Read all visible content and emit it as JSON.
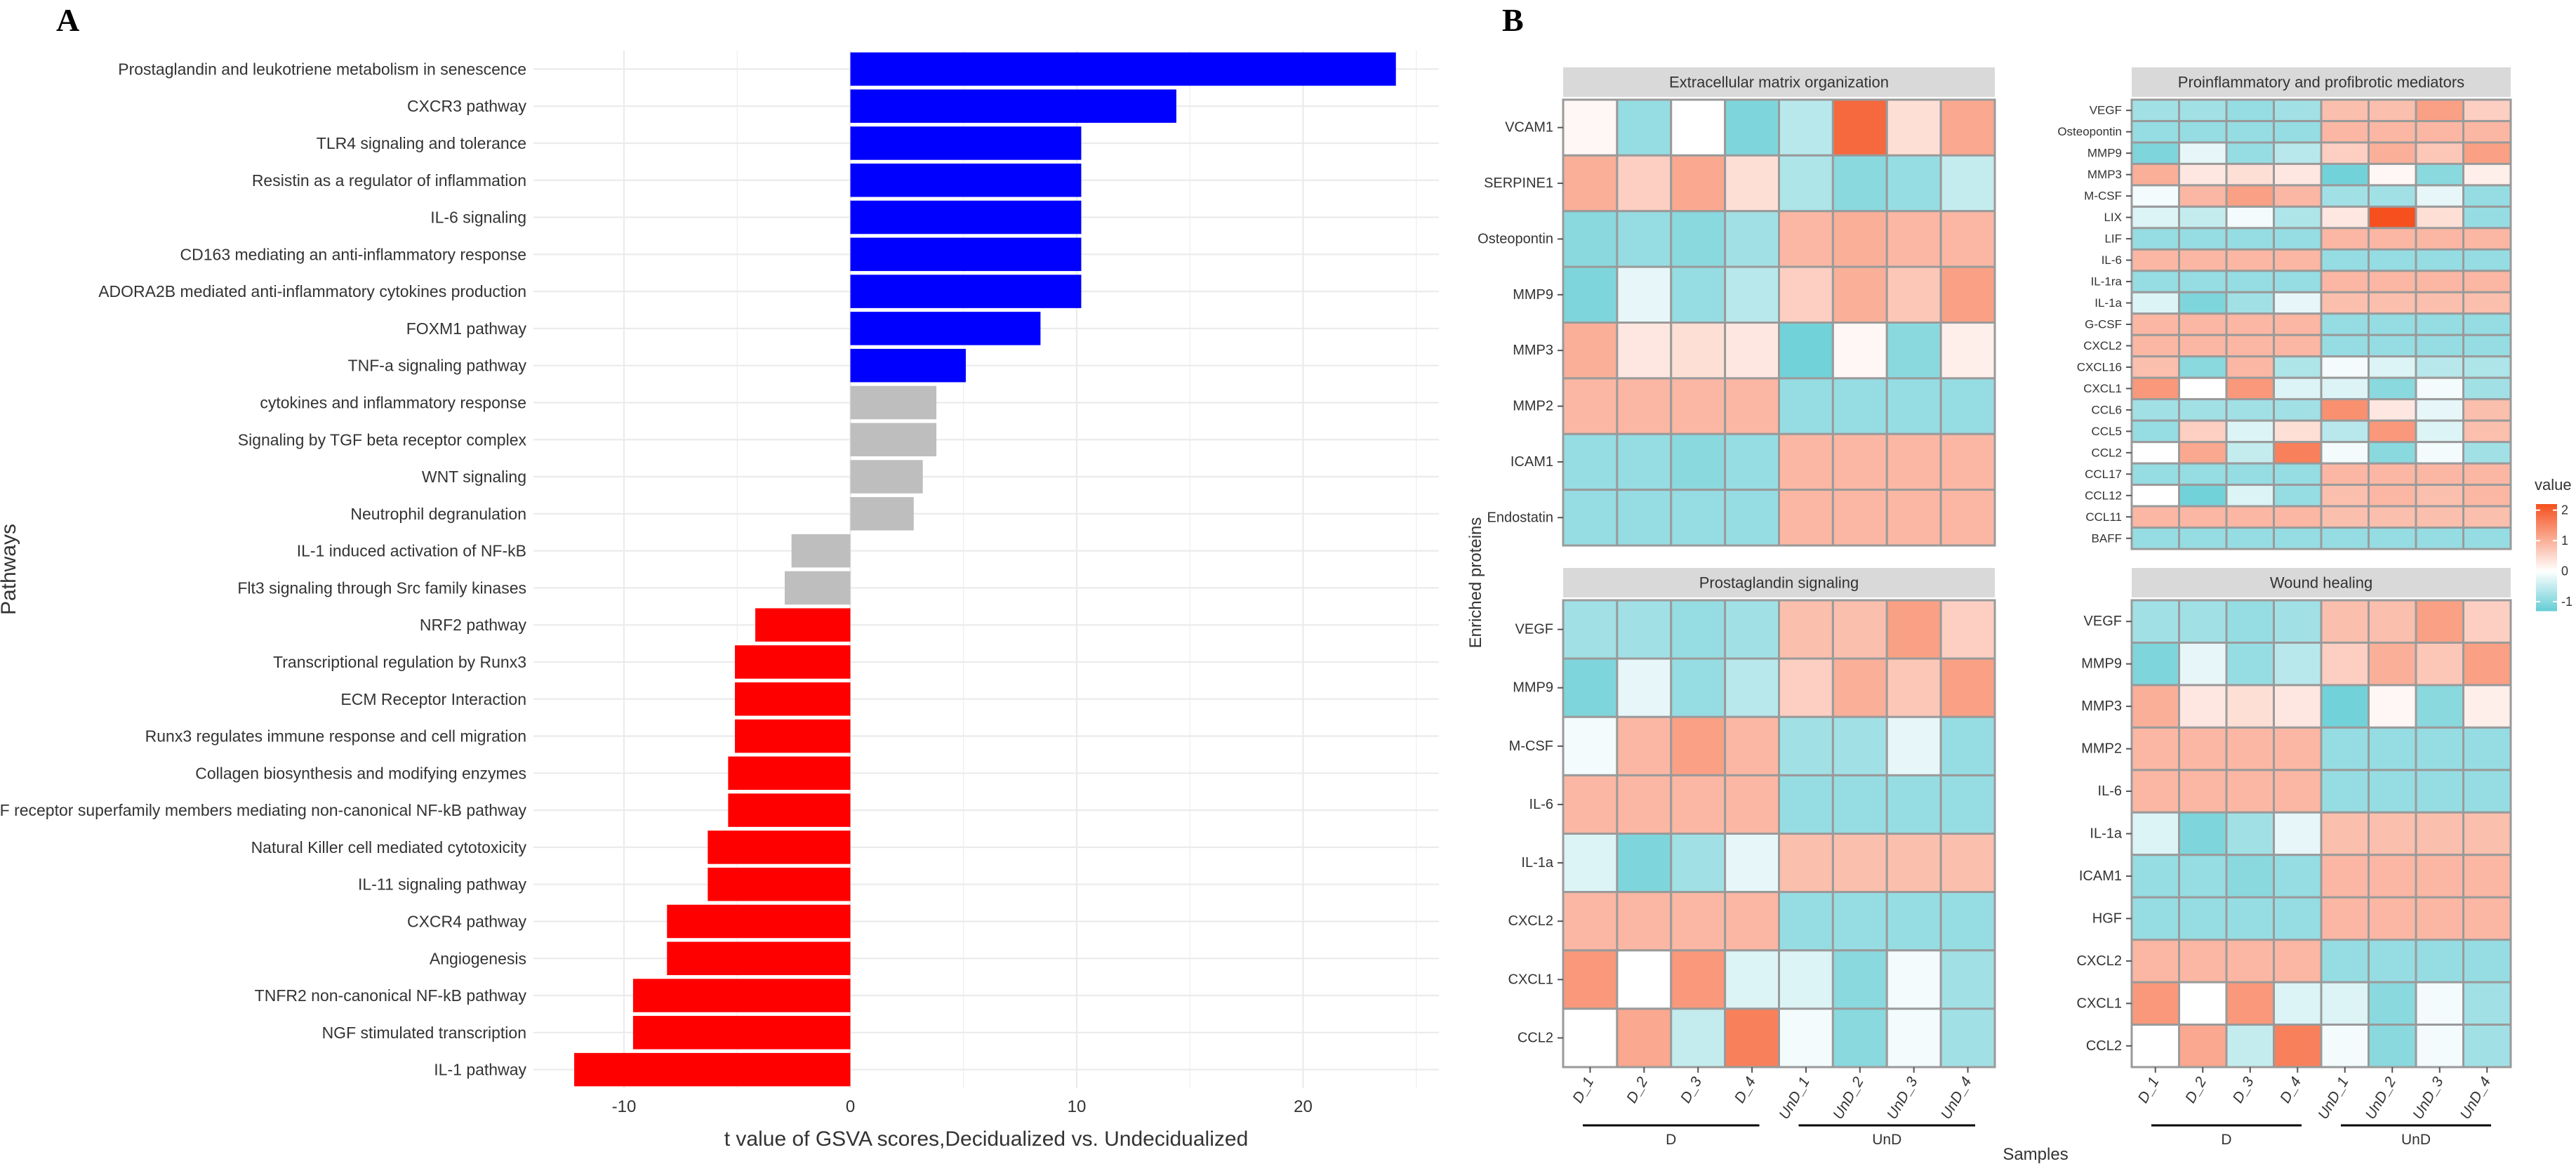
{
  "panel_a_letter": "A",
  "panel_b_letter": "B",
  "chart_data": [
    {
      "type": "bar",
      "orientation": "horizontal",
      "xlabel": "t value of GSVA scores,Decidualized vs. Undecidualized",
      "ylabel": "Pathways",
      "xlim": [
        -14,
        26
      ],
      "xticks": [
        -10,
        0,
        10,
        20
      ],
      "grid": true,
      "colors": {
        "up": "#0000FF",
        "ns": "#BEBEBE",
        "down": "#FF0000"
      },
      "categories": [
        "Prostaglandin and leukotriene metabolism in senescence",
        "CXCR3 pathway",
        "TLR4 signaling and tolerance",
        "Resistin as a regulator of inflammation",
        "IL-6 signaling",
        "CD163 mediating an anti-inflammatory response",
        "ADORA2B mediated anti-inflammatory cytokines production",
        "FOXM1 pathway",
        "TNF-a signaling pathway",
        "cytokines and inflammatory response",
        "Signaling by TGF beta receptor complex",
        "WNT signaling",
        "Neutrophil degranulation",
        "IL-1 induced activation of NF-kB",
        "Flt3 signaling through Src family kinases",
        "NRF2 pathway",
        "Transcriptional regulation by Runx3",
        "ECM Receptor Interaction",
        "Runx3 regulates immune response and cell migration",
        "Collagen biosynthesis and modifying enzymes",
        "TNF receptor superfamily members mediating non-canonical NF-kB pathway",
        "Natural Killer cell mediated cytotoxicity",
        "IL-11 signaling pathway",
        "CXCR4 pathway",
        "Angiogenesis",
        "TNFR2 non-canonical NF-kB pathway",
        "NGF stimulated transcription",
        "IL-1 pathway"
      ],
      "values": [
        24.1,
        14.4,
        10.2,
        10.2,
        10.2,
        10.2,
        10.2,
        8.4,
        5.1,
        3.8,
        3.8,
        3.2,
        2.8,
        -2.6,
        -2.9,
        -4.2,
        -5.1,
        -5.1,
        -5.1,
        -5.4,
        -5.4,
        -6.3,
        -6.3,
        -8.1,
        -8.1,
        -9.6,
        -9.6,
        -12.2
      ],
      "groups": [
        "up",
        "up",
        "up",
        "up",
        "up",
        "up",
        "up",
        "up",
        "up",
        "ns",
        "ns",
        "ns",
        "ns",
        "ns",
        "ns",
        "down",
        "down",
        "down",
        "down",
        "down",
        "down",
        "down",
        "down",
        "down",
        "down",
        "down",
        "down",
        "down"
      ]
    },
    {
      "type": "heatmap",
      "xlabel": "Samples",
      "ylabel": "Enriched proteins",
      "samples": [
        "D_1",
        "D_2",
        "D_3",
        "D_4",
        "UnD_1",
        "UnD_2",
        "UnD_3",
        "UnD_4"
      ],
      "sample_groups": [
        {
          "name": "D",
          "n": 4
        },
        {
          "name": "UnD",
          "n": 4
        }
      ],
      "legend": {
        "title": "value",
        "ticks": [
          2,
          1,
          0,
          -1
        ],
        "range": [
          -1.3,
          2.2
        ]
      },
      "facets": [
        {
          "title": "Extracellular matrix organization",
          "rows": [
            "VCAM1",
            "SERPINE1",
            "Osteopontin",
            "MMP9",
            "MMP3",
            "MMP2",
            "ICAM1",
            "Endostatin"
          ],
          "values": [
            [
              0.1,
              -0.9,
              0,
              -1.1,
              -0.6,
              1.9,
              0.4,
              1.1
            ],
            [
              1.0,
              0.6,
              1.1,
              0.4,
              -0.7,
              -1.0,
              -0.9,
              -0.5
            ],
            [
              -1.0,
              -0.9,
              -1.0,
              -0.8,
              0.9,
              1.0,
              0.9,
              0.9
            ],
            [
              -1.1,
              -0.2,
              -0.9,
              -0.6,
              0.6,
              1.0,
              0.7,
              1.2
            ],
            [
              1.0,
              0.3,
              0.4,
              0.3,
              -1.2,
              0.1,
              -1.0,
              0.2
            ],
            [
              0.9,
              0.9,
              0.9,
              0.9,
              -0.9,
              -0.9,
              -0.9,
              -0.9
            ],
            [
              -0.9,
              -0.9,
              -1.0,
              -0.9,
              0.9,
              0.9,
              0.9,
              0.9
            ],
            [
              -0.9,
              -0.9,
              -0.9,
              -0.9,
              0.9,
              0.9,
              0.9,
              0.9
            ]
          ]
        },
        {
          "title": "Proinflammatory and profibrotic mediators",
          "rows": [
            "VEGF",
            "Osteopontin",
            "MMP9",
            "MMP3",
            "M-CSF",
            "LIX",
            "LIF",
            "IL-6",
            "IL-1ra",
            "IL-1a",
            "G-CSF",
            "CXCL2",
            "CXCL16",
            "CXCL1",
            "CCL6",
            "CCL5",
            "CCL2",
            "CCL17",
            "CCL12",
            "CCL11",
            "BAFF"
          ],
          "values": [
            [
              -0.8,
              -0.8,
              -0.9,
              -0.8,
              0.8,
              0.8,
              1.2,
              0.6
            ],
            [
              -0.9,
              -0.9,
              -0.9,
              -0.9,
              0.9,
              0.9,
              0.9,
              0.9
            ],
            [
              -1.1,
              -0.2,
              -0.9,
              -0.6,
              0.6,
              1.0,
              0.7,
              1.2
            ],
            [
              1.0,
              0.3,
              0.4,
              0.3,
              -1.2,
              0.1,
              -1.0,
              0.2
            ],
            [
              -0.1,
              0.9,
              1.2,
              0.9,
              -0.8,
              -0.8,
              -0.2,
              -0.9
            ],
            [
              -0.3,
              -0.5,
              -0.1,
              -0.7,
              0.3,
              2.2,
              0.4,
              -0.9
            ],
            [
              -0.9,
              -0.9,
              -0.9,
              -0.9,
              0.9,
              0.9,
              0.9,
              0.9
            ],
            [
              0.9,
              0.9,
              0.9,
              0.9,
              -0.9,
              -0.9,
              -0.9,
              -0.9
            ],
            [
              -0.9,
              -0.9,
              -0.9,
              -0.9,
              0.9,
              0.9,
              0.9,
              0.9
            ],
            [
              -0.3,
              -1.1,
              -0.8,
              -0.2,
              0.8,
              0.8,
              0.8,
              0.8
            ],
            [
              0.9,
              0.9,
              0.9,
              0.9,
              -0.9,
              -0.9,
              -0.9,
              -0.9
            ],
            [
              0.9,
              0.9,
              0.9,
              0.9,
              -0.9,
              -0.9,
              -0.9,
              -0.9
            ],
            [
              0.8,
              -1.0,
              0.9,
              -0.7,
              -0.1,
              -0.3,
              -0.6,
              -0.7
            ],
            [
              1.3,
              0.0,
              1.3,
              -0.3,
              -0.3,
              -1.0,
              -0.1,
              -0.8
            ],
            [
              -0.8,
              -0.8,
              -0.8,
              -0.8,
              1.4,
              0.3,
              -0.2,
              0.8
            ],
            [
              -0.9,
              0.6,
              -0.3,
              0.4,
              -0.6,
              1.3,
              -0.3,
              0.8
            ],
            [
              0.0,
              1.1,
              -0.5,
              1.6,
              -0.1,
              -1.0,
              -0.1,
              -0.8
            ],
            [
              -0.9,
              -0.9,
              -0.9,
              -0.9,
              0.9,
              0.9,
              0.9,
              0.9
            ],
            [
              0.0,
              -1.2,
              -0.3,
              -0.9,
              0.8,
              0.9,
              0.8,
              0.9
            ],
            [
              0.9,
              0.9,
              0.9,
              0.9,
              0.8,
              0.8,
              0.8,
              0.8
            ],
            [
              -0.9,
              -0.9,
              -0.9,
              -0.9,
              -0.9,
              -0.9,
              -0.9,
              -0.9
            ]
          ]
        },
        {
          "title": "Prostaglandin signaling",
          "rows": [
            "VEGF",
            "MMP9",
            "M-CSF",
            "IL-6",
            "IL-1a",
            "CXCL2",
            "CXCL1",
            "CCL2"
          ],
          "values": [
            [
              -0.8,
              -0.8,
              -0.9,
              -0.8,
              0.8,
              0.8,
              1.2,
              0.6
            ],
            [
              -1.1,
              -0.2,
              -0.9,
              -0.6,
              0.6,
              1.0,
              0.7,
              1.2
            ],
            [
              -0.1,
              0.9,
              1.2,
              0.9,
              -0.8,
              -0.8,
              -0.2,
              -0.9
            ],
            [
              0.9,
              0.9,
              0.9,
              0.9,
              -0.9,
              -0.9,
              -0.9,
              -0.9
            ],
            [
              -0.3,
              -1.1,
              -0.8,
              -0.2,
              0.8,
              0.8,
              0.8,
              0.8
            ],
            [
              0.9,
              0.9,
              0.9,
              0.9,
              -0.9,
              -0.9,
              -0.9,
              -0.9
            ],
            [
              1.3,
              0.0,
              1.3,
              -0.3,
              -0.3,
              -1.0,
              -0.1,
              -0.8
            ],
            [
              0.0,
              1.1,
              -0.5,
              1.6,
              -0.1,
              -1.0,
              -0.1,
              -0.8
            ]
          ]
        },
        {
          "title": "Wound healing",
          "rows": [
            "VEGF",
            "MMP9",
            "MMP3",
            "MMP2",
            "IL-6",
            "IL-1a",
            "ICAM1",
            "HGF",
            "CXCL2",
            "CXCL1",
            "CCL2"
          ],
          "values": [
            [
              -0.8,
              -0.8,
              -0.9,
              -0.8,
              0.8,
              0.8,
              1.2,
              0.6
            ],
            [
              -1.1,
              -0.2,
              -0.9,
              -0.6,
              0.6,
              1.0,
              0.7,
              1.2
            ],
            [
              1.0,
              0.3,
              0.4,
              0.3,
              -1.2,
              0.1,
              -1.0,
              0.2
            ],
            [
              0.9,
              0.9,
              0.9,
              0.9,
              -0.9,
              -0.9,
              -0.9,
              -0.9
            ],
            [
              0.9,
              0.9,
              0.9,
              0.9,
              -0.9,
              -0.9,
              -0.9,
              -0.9
            ],
            [
              -0.3,
              -1.1,
              -0.8,
              -0.2,
              0.8,
              0.8,
              0.8,
              0.8
            ],
            [
              -0.9,
              -0.9,
              -1.0,
              -0.9,
              0.9,
              0.9,
              0.9,
              0.9
            ],
            [
              -0.9,
              -0.9,
              -0.9,
              -0.9,
              0.9,
              0.9,
              0.9,
              0.9
            ],
            [
              0.9,
              0.9,
              0.9,
              0.9,
              -0.9,
              -0.9,
              -0.9,
              -0.9
            ],
            [
              1.3,
              0.0,
              1.3,
              -0.3,
              -0.3,
              -1.0,
              -0.1,
              -0.8
            ],
            [
              0.0,
              1.1,
              -0.5,
              1.6,
              -0.1,
              -1.0,
              -0.1,
              -0.8
            ]
          ]
        }
      ]
    }
  ]
}
